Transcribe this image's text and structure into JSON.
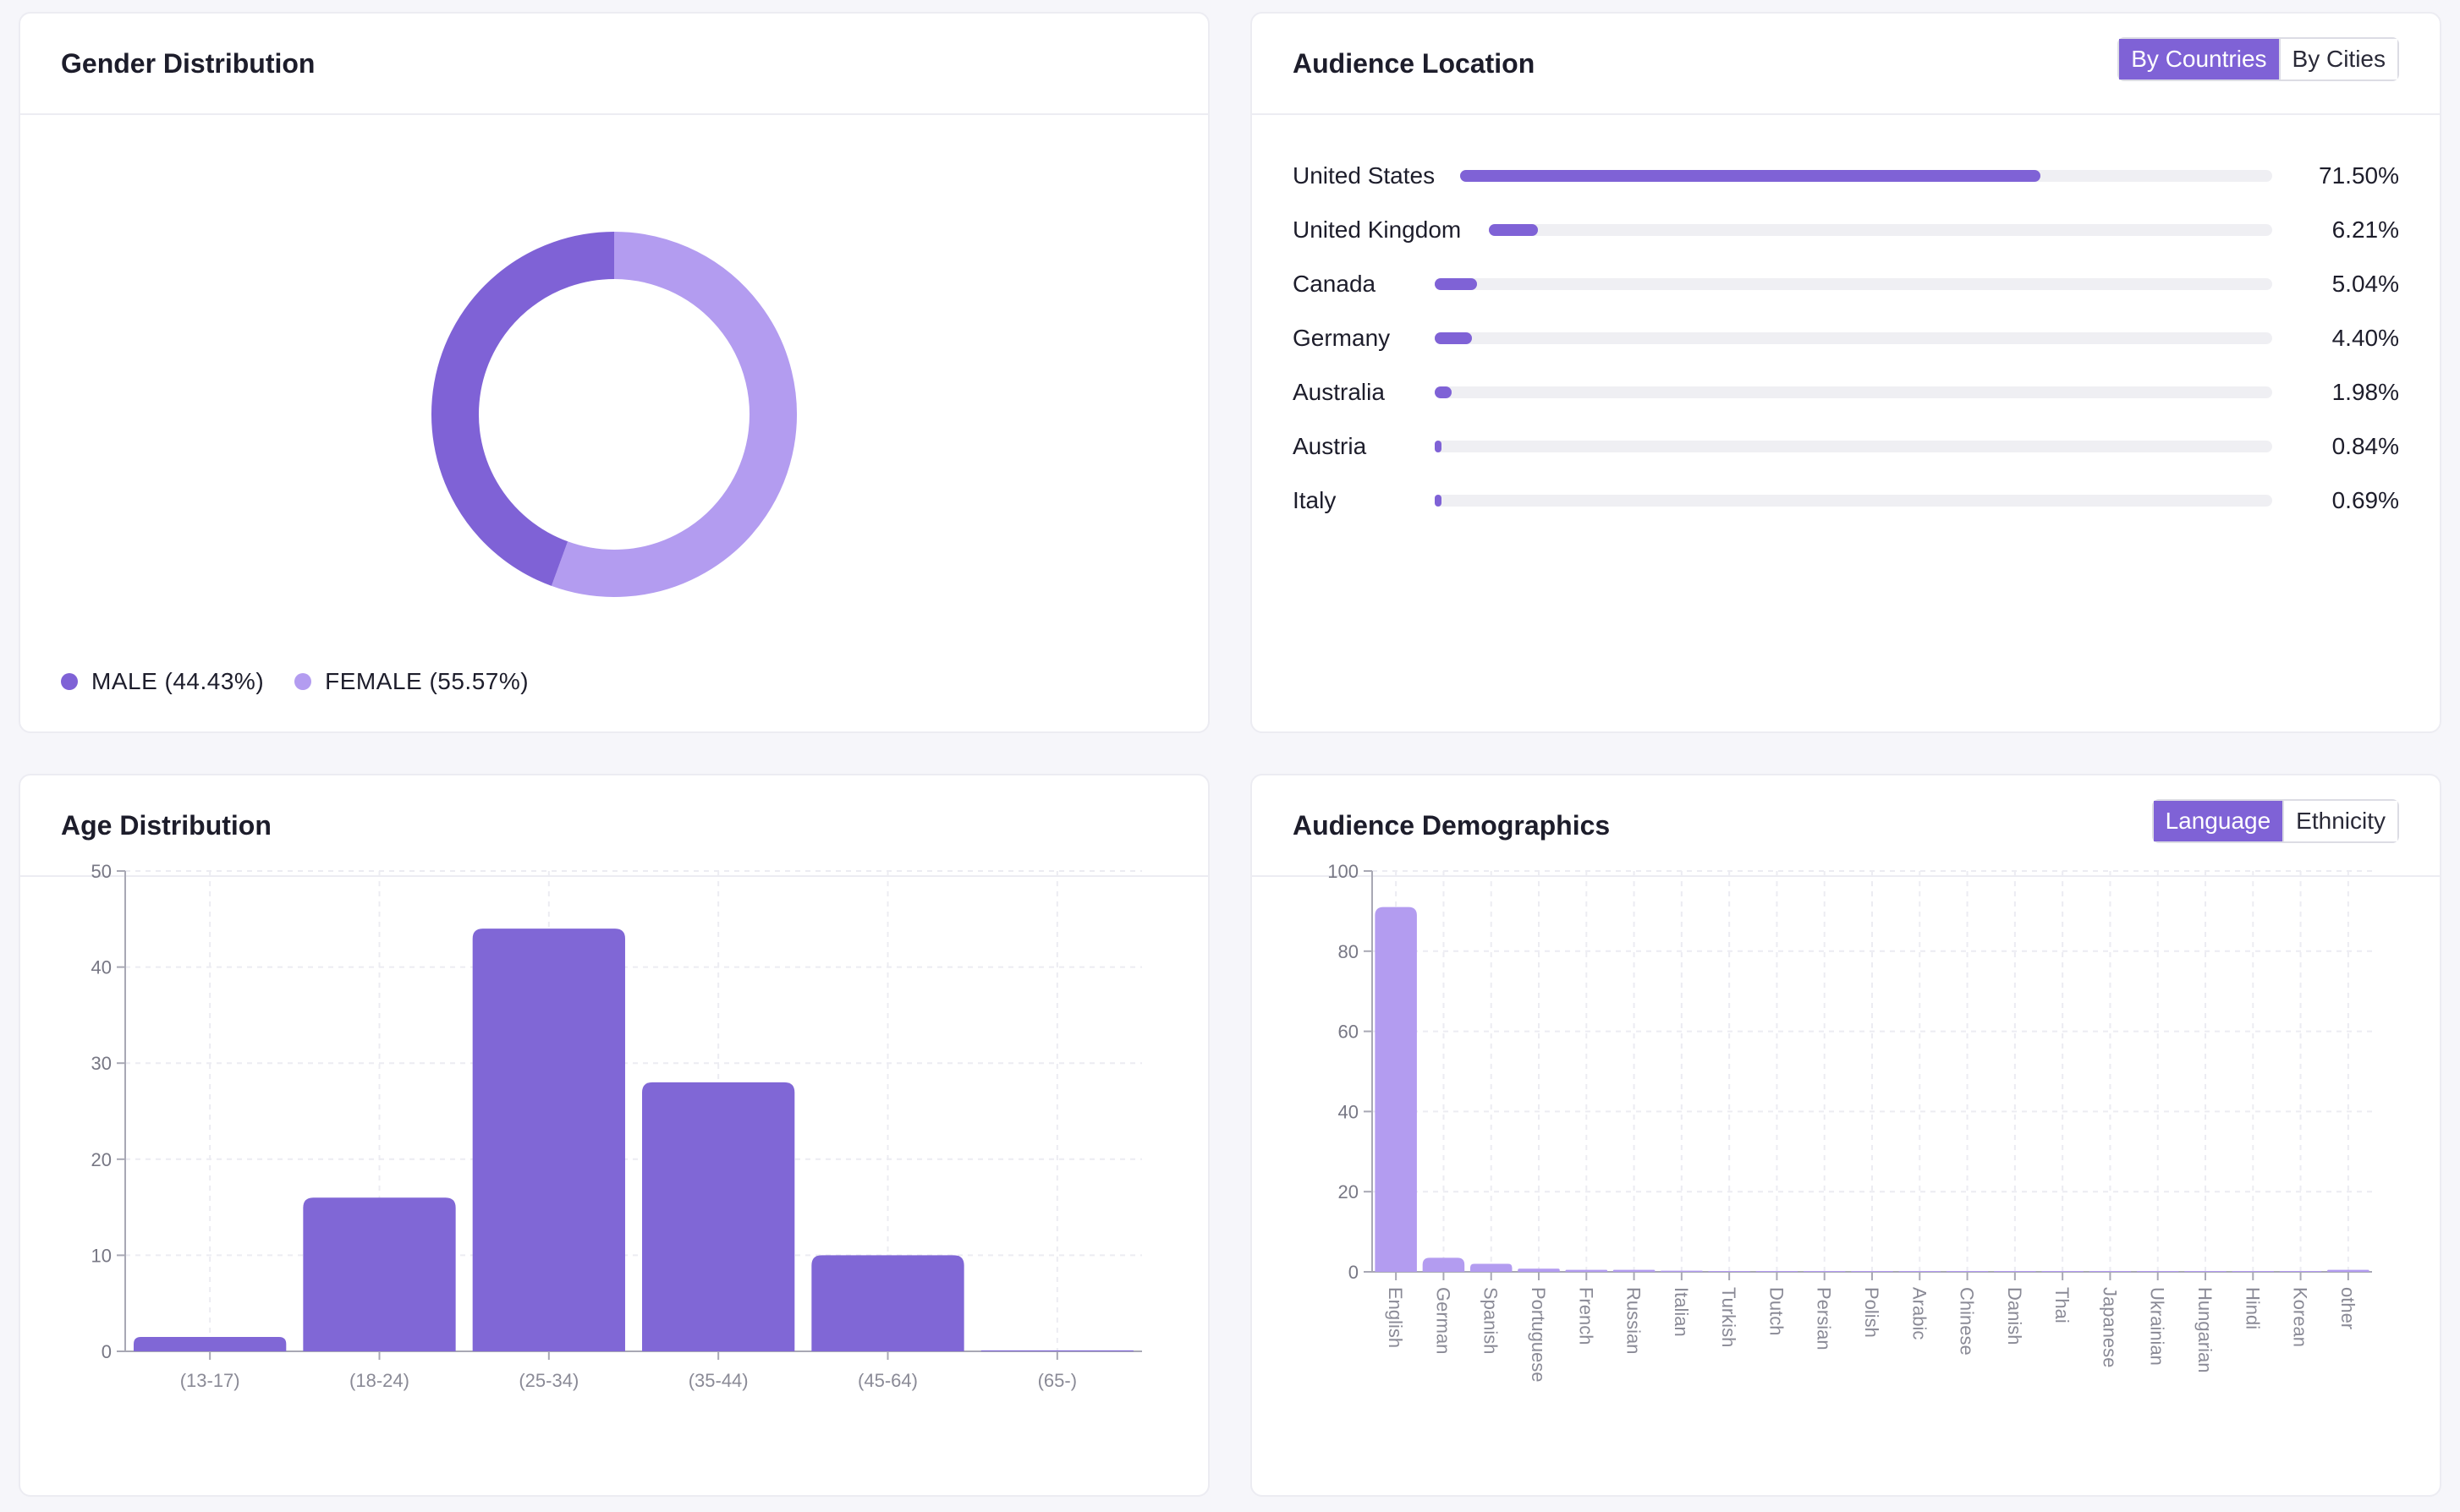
{
  "colors": {
    "male": "#7f62d6",
    "female": "#b39cf0",
    "bar": "#8067d6",
    "bar_light": "#b39cf0",
    "accent": "#7f62d6"
  },
  "gender": {
    "title": "Gender Distribution",
    "legend": [
      {
        "label": "MALE (44.43%)",
        "color": "#7f62d6"
      },
      {
        "label": "FEMALE (55.57%)",
        "color": "#b39cf0"
      }
    ]
  },
  "location": {
    "title": "Audience Location",
    "toggle": [
      "By Countries",
      "By Cities"
    ],
    "rows": [
      {
        "name": "United States",
        "pct": "71.50%",
        "value": 71.5
      },
      {
        "name": "United Kingdom",
        "pct": "6.21%",
        "value": 6.21
      },
      {
        "name": "Canada",
        "pct": "5.04%",
        "value": 5.04
      },
      {
        "name": "Germany",
        "pct": "4.40%",
        "value": 4.4
      },
      {
        "name": "Australia",
        "pct": "1.98%",
        "value": 1.98
      },
      {
        "name": "Austria",
        "pct": "0.84%",
        "value": 0.84
      },
      {
        "name": "Italy",
        "pct": "0.69%",
        "value": 0.69
      }
    ]
  },
  "age": {
    "title": "Age Distribution"
  },
  "demographics": {
    "title": "Audience Demographics",
    "toggle": [
      "Language",
      "Ethnicity"
    ]
  },
  "chart_data": [
    {
      "type": "pie",
      "categories": [
        "MALE",
        "FEMALE"
      ],
      "values": [
        44.43,
        55.57
      ],
      "colors": [
        "#7f62d6",
        "#b39cf0"
      ],
      "donut": true
    },
    {
      "type": "bar",
      "categories": [
        "United States",
        "United Kingdom",
        "Canada",
        "Germany",
        "Australia",
        "Austria",
        "Italy"
      ],
      "values": [
        71.5,
        6.21,
        5.04,
        4.4,
        1.98,
        0.84,
        0.69
      ],
      "orientation": "horizontal"
    },
    {
      "type": "bar",
      "categories": [
        "(13-17)",
        "(18-24)",
        "(25-34)",
        "(35-44)",
        "(45-64)",
        "(65-)"
      ],
      "values": [
        1.5,
        16,
        44,
        28,
        10,
        0.1
      ],
      "yticks": [
        0,
        10,
        20,
        30,
        40,
        50
      ],
      "ylim": [
        0,
        50
      ],
      "grid": true
    },
    {
      "type": "bar",
      "categories": [
        "English",
        "German",
        "Spanish",
        "Portuguese",
        "French",
        "Russian",
        "Italian",
        "Turkish",
        "Dutch",
        "Persian",
        "Polish",
        "Arabic",
        "Chinese",
        "Danish",
        "Thai",
        "Japanese",
        "Ukrainian",
        "Hungarian",
        "Hindi",
        "Korean",
        "other"
      ],
      "values": [
        91,
        3.5,
        2,
        0.8,
        0.5,
        0.5,
        0.3,
        0.2,
        0.1,
        0.1,
        0.1,
        0.1,
        0.1,
        0.1,
        0.1,
        0.1,
        0.1,
        0.1,
        0.1,
        0.1,
        0.5
      ],
      "yticks": [
        0,
        20,
        40,
        60,
        80,
        100
      ],
      "ylim": [
        0,
        100
      ],
      "grid": true
    }
  ]
}
